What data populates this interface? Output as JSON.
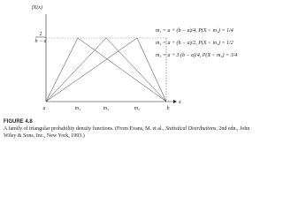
{
  "figure": {
    "y_label": "fX(x)",
    "y_level_numerator": "2",
    "y_level_denominator": "b − a",
    "x_label": "x",
    "x_ticks": [
      "a",
      "m₁",
      "m₂",
      "m₃",
      "b"
    ],
    "legend": [
      "m₁ = a + (b − a)/4, P(X < m₁) = 1/4",
      "m₂ = a + (b − a)/2, P(X < m₂) = 1/2",
      "m₃ = a + 3 (b − a)/4, P(X < m₃) = 3/4"
    ],
    "caption_label": "FIGURE 4.8",
    "caption_text": "A family of triangular probability density functions. (From Evans, M. et al., ",
    "caption_italic": "Statistical Distributions",
    "caption_end": ", 2nd edn., John Wiley & Sons, Inc., New York, 1993.)"
  }
}
